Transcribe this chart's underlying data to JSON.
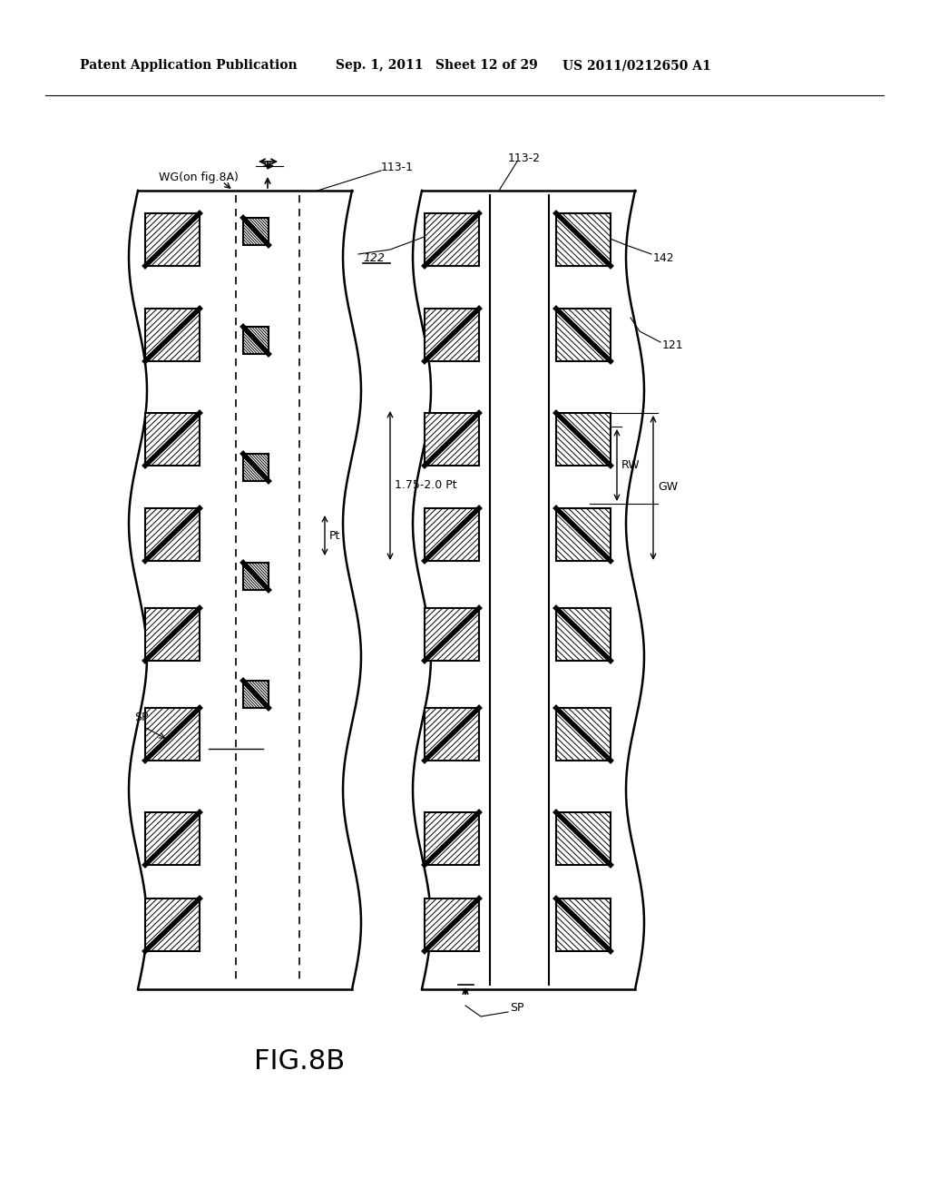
{
  "title_line1": "Patent Application Publication",
  "title_date": "Sep. 1, 2011",
  "title_sheet": "Sheet 12 of 29",
  "title_patent": "US 2011/0212650 A1",
  "fig_label": "FIG.8B",
  "bg_color": "#ffffff",
  "line_color": "#000000",
  "hatch_color": "#000000",
  "labels": {
    "wg": "WG(on fig.8A)",
    "113_1": "113-1",
    "113_2": "113-2",
    "122": "122",
    "142": "142",
    "121": "121",
    "1_75": "1.75-2.0 Pt",
    "Pt": "Pt",
    "RW": "RW",
    "GW": "GW",
    "SP_left": "SP",
    "SP_bottom": "SP"
  }
}
